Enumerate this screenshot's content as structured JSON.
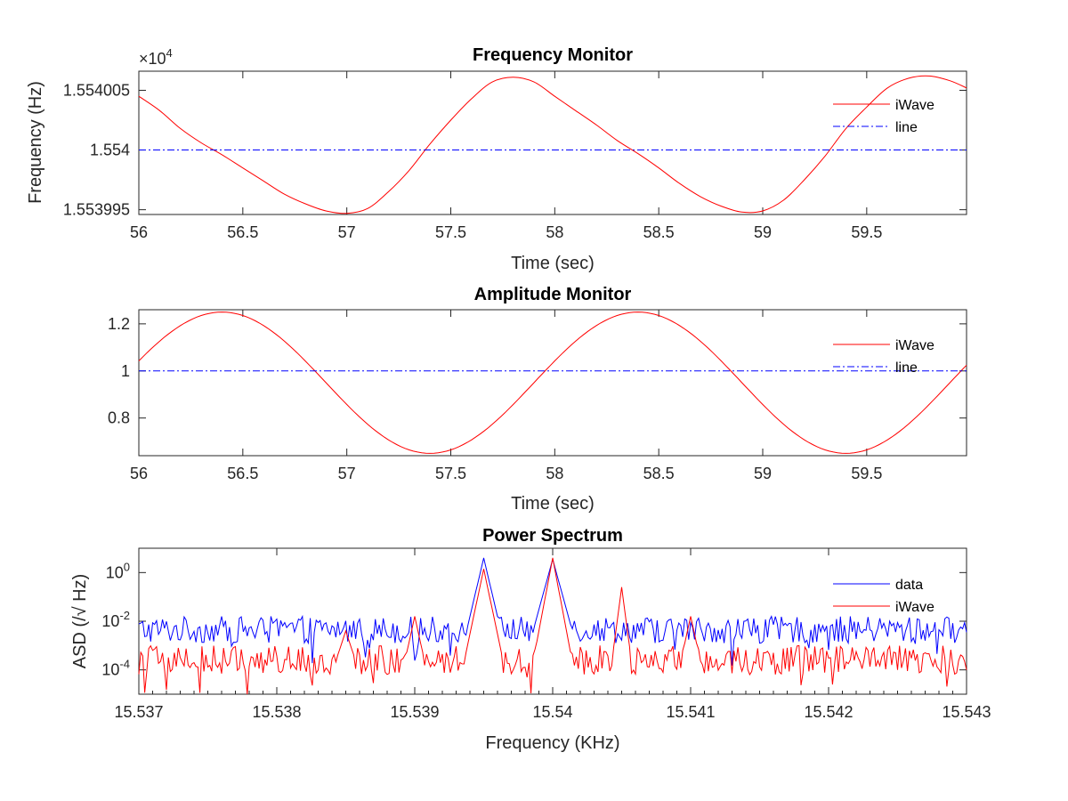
{
  "chart_data": [
    {
      "type": "line",
      "title": "Frequency Monitor",
      "xlabel": "Time (sec)",
      "ylabel": "Frequency (Hz)",
      "exponent_label": "×10",
      "exponent_power": "4",
      "xlim": [
        56,
        59.98
      ],
      "ylim": [
        1.5539946,
        1.5540066
      ],
      "xticks": [
        56,
        56.5,
        57,
        57.5,
        58,
        58.5,
        59,
        59.5
      ],
      "xtick_labels": [
        "56",
        "56.5",
        "57",
        "57.5",
        "58",
        "58.5",
        "59",
        "59.5"
      ],
      "yticks": [
        1.553995,
        1.554,
        1.554005
      ],
      "ytick_labels": [
        "1.553995",
        "1.554",
        "1.554005"
      ],
      "legend": [
        "iWave",
        "line"
      ],
      "series": [
        {
          "name": "iWave",
          "color": "#ff0000",
          "style": "solid",
          "x": [
            56.0,
            56.1,
            56.2,
            56.3,
            56.4,
            56.5,
            56.6,
            56.7,
            56.8,
            56.9,
            57.0,
            57.1,
            57.2,
            57.3,
            57.4,
            57.5,
            57.6,
            57.7,
            57.8,
            57.9,
            58.0,
            58.1,
            58.2,
            58.3,
            58.4,
            58.5,
            58.6,
            58.7,
            58.8,
            58.9,
            59.0,
            59.1,
            59.2,
            59.3,
            59.4,
            59.5,
            59.6,
            59.7,
            59.8,
            59.9,
            59.98
          ],
          "values": [
            1.5540045,
            1.5540033,
            1.5540018,
            1.5540006,
            1.5539996,
            1.5539985,
            1.5539974,
            1.5539963,
            1.5539955,
            1.5539949,
            1.5539947,
            1.5539951,
            1.5539965,
            1.5539983,
            1.5540005,
            1.5540025,
            1.5540043,
            1.5540057,
            1.5540061,
            1.5540057,
            1.5540045,
            1.5540033,
            1.5540021,
            1.5540008,
            1.5539997,
            1.5539985,
            1.5539972,
            1.5539961,
            1.5539953,
            1.5539948,
            1.5539949,
            1.5539958,
            1.5539975,
            1.5539995,
            1.5540018,
            1.5540036,
            1.5540052,
            1.554006,
            1.5540062,
            1.5540058,
            1.5540052
          ]
        },
        {
          "name": "line",
          "color": "#0000ff",
          "style": "dashdot",
          "x": [
            56,
            59.98
          ],
          "values": [
            1.554,
            1.554
          ]
        }
      ]
    },
    {
      "type": "line",
      "title": "Amplitude Monitor",
      "xlabel": "Time (sec)",
      "ylabel": "",
      "xlim": [
        56,
        59.98
      ],
      "ylim": [
        0.64,
        1.26
      ],
      "xticks": [
        56,
        56.5,
        57,
        57.5,
        58,
        58.5,
        59,
        59.5
      ],
      "xtick_labels": [
        "56",
        "56.5",
        "57",
        "57.5",
        "58",
        "58.5",
        "59",
        "59.5"
      ],
      "yticks": [
        0.8,
        1.0,
        1.2
      ],
      "ytick_labels": [
        "0.8",
        "1",
        "1.2"
      ],
      "legend": [
        "iWave",
        "line"
      ],
      "series": [
        {
          "name": "iWave",
          "color": "#ff0000",
          "style": "solid",
          "sine": {
            "offset": 0.95,
            "amplitude": 0.3,
            "period": 2.0,
            "peak_at": 56.4
          }
        },
        {
          "name": "line",
          "color": "#0000ff",
          "style": "dashdot",
          "x": [
            56,
            59.98
          ],
          "values": [
            1.0,
            1.0
          ]
        }
      ]
    },
    {
      "type": "line",
      "title": "Power Spectrum",
      "xlabel": "Frequency (KHz)",
      "ylabel": "ASD (/√ Hz)",
      "yscale": "log",
      "xlim": [
        15.537,
        15.543
      ],
      "ylim_log10": [
        -5,
        1
      ],
      "xticks": [
        15.537,
        15.538,
        15.539,
        15.54,
        15.541,
        15.542,
        15.543
      ],
      "xtick_labels": [
        "15.537",
        "15.538",
        "15.539",
        "15.54",
        "15.541",
        "15.542",
        "15.543"
      ],
      "yticks_log10": [
        -4,
        -2,
        0
      ],
      "ytick_base": "10",
      "ytick_exponents": [
        "-4",
        "-2",
        "0"
      ],
      "legend": [
        "data",
        "iWave"
      ],
      "series": [
        {
          "name": "data",
          "color": "#0000ff",
          "style": "solid",
          "baseline_log10": -2.35,
          "noise_log10": 0.55,
          "peaks": [
            {
              "x": 15.5395,
              "log10": 0.6,
              "width": 3.5e-05
            },
            {
              "x": 15.54,
              "log10": 0.55,
              "width": 4e-05
            }
          ]
        },
        {
          "name": "iWave",
          "color": "#ff0000",
          "style": "solid",
          "baseline_log10": -3.6,
          "noise_log10": 0.6,
          "peaks": [
            {
              "x": 15.5395,
              "log10": 0.15,
              "width": 4e-05
            },
            {
              "x": 15.54,
              "log10": 0.6,
              "width": 4e-05
            },
            {
              "x": 15.5405,
              "log10": -0.6,
              "width": 2e-05
            },
            {
              "x": 15.541,
              "log10": -1.8,
              "width": 2e-05
            },
            {
              "x": 15.539,
              "log10": -1.8,
              "width": 2e-05
            },
            {
              "x": 15.5385,
              "log10": -2.4,
              "width": 2e-05
            }
          ]
        }
      ]
    }
  ]
}
